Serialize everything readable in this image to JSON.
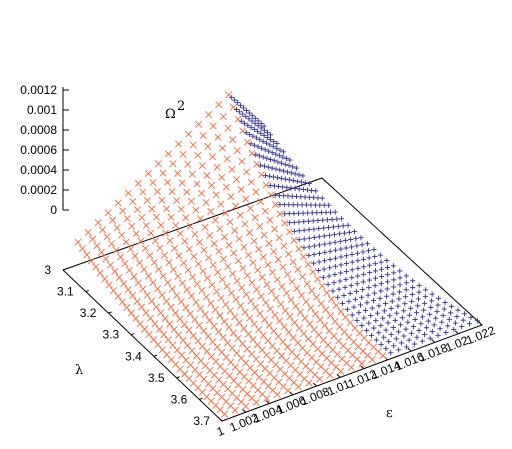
{
  "chart_data": {
    "type": "scatter",
    "projection": "3d",
    "title": "",
    "zlabel": "Ω",
    "zlabel_superscript": "2",
    "ylabel": "λ",
    "xlabel": "ε",
    "zlim": [
      0,
      0.0012
    ],
    "ylim": [
      3,
      3.7
    ],
    "xlim": [
      1,
      1.022
    ],
    "z_ticks": [
      "0.0012",
      "0.001",
      "0.0008",
      "0.0006",
      "0.0004",
      "0.0002",
      "0"
    ],
    "y_ticks": [
      "3",
      "3.1",
      "3.2",
      "3.3",
      "3.4",
      "3.5",
      "3.6",
      "3.7"
    ],
    "x_ticks": [
      "1",
      "1.002",
      "1.004",
      "1.006",
      "1.008",
      "1.01",
      "1.012",
      "1.014",
      "1.016",
      "1.018",
      "1.02",
      "1.022"
    ],
    "grid": false,
    "legend": "none",
    "series": [
      {
        "marker": "x",
        "color": "#ff6633",
        "lambda_range": [
          3.03,
          3.68
        ],
        "lambda_steps": 34,
        "epsilon_range": [
          1.0,
          1.021
        ],
        "epsilon_at_lambda_min": 1.0007,
        "epsilon_at_lambda_max": 1.0006
      },
      {
        "marker": "+",
        "color": "#333399",
        "lambda_range": [
          3.03,
          3.68
        ],
        "lambda_steps": 34,
        "epsilon_at_lambda_min": 1.0165,
        "epsilon_at_lambda_max": 1.022
      }
    ],
    "surface": {
      "omega2_peak": 0.00125,
      "peak_at_lambda": 3.03,
      "omega2_at_lambda_max": 0.0
    }
  }
}
